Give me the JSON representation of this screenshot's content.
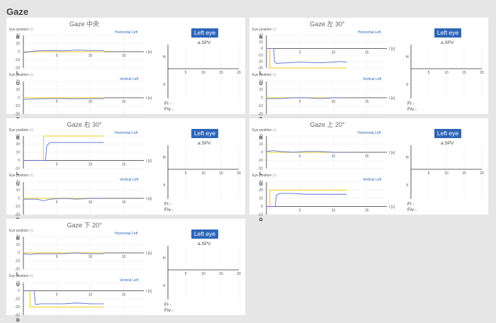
{
  "page_title": "Gaze",
  "labels": {
    "eye_position": "Eye position",
    "help_mark": "[?]",
    "horizontal": "Horizontal Left",
    "vertical": "Vertical Left",
    "eye_button": "Left eye",
    "spv": "a.SPV",
    "fi": "FI -",
    "fiv": "FIv -",
    "time_unit": "t [s]",
    "ch_h": "H",
    "ch_v": "V",
    "r": "R",
    "l": "L",
    "u": "U",
    "d": "D"
  },
  "panels": [
    {
      "title": "Gaze 中央"
    },
    {
      "title": "Gaze 左 30°"
    },
    {
      "title": "Gaze 右 30°"
    },
    {
      "title": "Gaze 上 20°"
    },
    {
      "title": "Gaze 下 20°"
    }
  ],
  "colors": {
    "stimulus": "#f5d442",
    "eye": "#5b6fd6",
    "button": "#2e66b8"
  },
  "chart_data": [
    {
      "type": "line",
      "name": "Gaze 中央 Horizontal Left",
      "x_range": [
        0,
        18
      ],
      "ylim": [
        -20,
        20
      ],
      "yticks": [
        20,
        10,
        0,
        -10,
        -20
      ],
      "xticks": [
        5,
        10,
        15
      ],
      "xlabel": "t [s]",
      "series": [
        {
          "name": "stimulus",
          "x": [
            0,
            12
          ],
          "y": [
            0,
            0
          ],
          "step": true
        },
        {
          "name": "eye",
          "x": [
            0,
            1,
            2,
            4,
            6,
            8,
            10,
            12
          ],
          "y": [
            -1,
            0,
            1,
            1.5,
            1,
            2,
            1.5,
            1.5
          ]
        }
      ]
    },
    {
      "type": "line",
      "name": "Gaze 中央 Vertical Left",
      "x_range": [
        0,
        18
      ],
      "ylim": [
        -20,
        20
      ],
      "yticks": [
        20,
        10,
        0,
        -10,
        -20
      ],
      "xticks": [
        5,
        10,
        15
      ],
      "xlabel": "t [s]",
      "series": [
        {
          "name": "stimulus",
          "x": [
            0,
            12
          ],
          "y": [
            0,
            0
          ],
          "step": true
        },
        {
          "name": "eye",
          "x": [
            0,
            2,
            4,
            6,
            8,
            10,
            12
          ],
          "y": [
            -2,
            -1.5,
            -1,
            -1,
            -1.5,
            -1,
            -1
          ]
        }
      ]
    },
    {
      "type": "line",
      "name": "Gaze 左 30° Horizontal Left",
      "x_range": [
        0,
        18
      ],
      "ylim": [
        -30,
        20
      ],
      "yticks": [
        20,
        10,
        0,
        -10,
        -20,
        -30
      ],
      "xticks": [
        5,
        10,
        15
      ],
      "xlabel": "t [s]",
      "series": [
        {
          "name": "stimulus",
          "x": [
            0,
            0.5,
            0.5,
            12
          ],
          "y": [
            0,
            0,
            -30,
            -30
          ]
        },
        {
          "name": "eye",
          "x": [
            0,
            1.1,
            1.2,
            1.5,
            3,
            5,
            8,
            10,
            11,
            12
          ],
          "y": [
            0,
            0,
            -20,
            -23,
            -22,
            -21,
            -22,
            -21,
            -20,
            -21
          ]
        }
      ]
    },
    {
      "type": "line",
      "name": "Gaze 左 30° Vertical Left",
      "x_range": [
        0,
        18
      ],
      "ylim": [
        -20,
        20
      ],
      "yticks": [
        20,
        10,
        0,
        -10,
        -20
      ],
      "xticks": [
        5,
        10,
        15
      ],
      "xlabel": "t [s]",
      "series": [
        {
          "name": "stimulus",
          "x": [
            0,
            12
          ],
          "y": [
            0,
            0
          ]
        },
        {
          "name": "eye",
          "x": [
            0,
            2,
            4,
            6,
            8,
            10,
            12
          ],
          "y": [
            -1,
            -1,
            0,
            0,
            -1,
            0,
            0
          ]
        }
      ]
    },
    {
      "type": "line",
      "name": "Gaze 右 30° Horizontal Left",
      "x_range": [
        0,
        18
      ],
      "ylim": [
        -10,
        30
      ],
      "yticks": [
        30,
        20,
        10,
        0,
        -10
      ],
      "xticks": [
        5,
        10,
        15
      ],
      "xlabel": "t [s]",
      "series": [
        {
          "name": "stimulus",
          "x": [
            0,
            3,
            3,
            12
          ],
          "y": [
            0,
            0,
            30,
            30
          ]
        },
        {
          "name": "eye",
          "x": [
            0,
            3.3,
            3.5,
            4,
            6,
            8,
            10,
            12
          ],
          "y": [
            0,
            0,
            18,
            22,
            22,
            22,
            22,
            22
          ]
        }
      ]
    },
    {
      "type": "line",
      "name": "Gaze 右 30° Vertical Left",
      "x_range": [
        0,
        18
      ],
      "ylim": [
        -20,
        20
      ],
      "yticks": [
        20,
        10,
        0,
        -10,
        -20
      ],
      "xticks": [
        5,
        10,
        15
      ],
      "xlabel": "t [s]",
      "series": [
        {
          "name": "stimulus",
          "x": [
            0,
            12
          ],
          "y": [
            0,
            0
          ]
        },
        {
          "name": "eye",
          "x": [
            0,
            2,
            3,
            4,
            6,
            8,
            10,
            12
          ],
          "y": [
            -1,
            -1,
            -3,
            -1,
            0,
            -1,
            0,
            0
          ]
        }
      ]
    },
    {
      "type": "line",
      "name": "Gaze 上 20° Horizontal Left",
      "x_range": [
        0,
        18
      ],
      "ylim": [
        -20,
        20
      ],
      "yticks": [
        20,
        10,
        0,
        -10,
        -20
      ],
      "xticks": [
        5,
        10,
        15
      ],
      "xlabel": "t [s]",
      "series": [
        {
          "name": "stimulus",
          "x": [
            0,
            12
          ],
          "y": [
            0,
            0
          ]
        },
        {
          "name": "eye",
          "x": [
            0,
            1,
            2,
            4,
            6,
            8,
            10,
            12
          ],
          "y": [
            1,
            2,
            1,
            0,
            1,
            1,
            0,
            0
          ]
        }
      ]
    },
    {
      "type": "line",
      "name": "Gaze 上 20° Vertical Left",
      "x_range": [
        0,
        18
      ],
      "ylim": [
        -10,
        30
      ],
      "yticks": [
        30,
        20,
        10,
        0,
        -10
      ],
      "xticks": [
        5,
        10,
        15
      ],
      "xlabel": "t [s]",
      "series": [
        {
          "name": "stimulus",
          "x": [
            0,
            0.5,
            0.5,
            12
          ],
          "y": [
            0,
            0,
            20,
            20
          ]
        },
        {
          "name": "eye",
          "x": [
            0,
            1.3,
            1.5,
            2,
            4,
            6,
            8,
            10,
            12
          ],
          "y": [
            0,
            0,
            14,
            16,
            16,
            15,
            15,
            15,
            15
          ]
        }
      ]
    },
    {
      "type": "line",
      "name": "Gaze 下 20° Horizontal Left",
      "x_range": [
        0,
        18
      ],
      "ylim": [
        -20,
        20
      ],
      "yticks": [
        20,
        10,
        0,
        -10,
        -20
      ],
      "xticks": [
        5,
        10,
        15
      ],
      "xlabel": "t [s]",
      "series": [
        {
          "name": "stimulus",
          "x": [
            0,
            12
          ],
          "y": [
            0,
            0
          ]
        },
        {
          "name": "eye",
          "x": [
            0,
            1,
            2,
            4,
            6,
            8,
            10,
            12
          ],
          "y": [
            -1,
            -2,
            -1,
            -1,
            -1,
            0,
            -1,
            -1
          ]
        }
      ]
    },
    {
      "type": "line",
      "name": "Gaze 下 20° Vertical Left",
      "x_range": [
        0,
        18
      ],
      "ylim": [
        -30,
        10
      ],
      "yticks": [
        10,
        0,
        -10,
        -20,
        -30
      ],
      "xticks": [
        5,
        10,
        15
      ],
      "xlabel": "t [s]",
      "series": [
        {
          "name": "stimulus",
          "x": [
            0,
            1,
            1,
            12
          ],
          "y": [
            0,
            0,
            -20,
            -20
          ]
        },
        {
          "name": "eye",
          "x": [
            0,
            1.6,
            1.8,
            2.5,
            4,
            6,
            8,
            10,
            12
          ],
          "y": [
            0,
            0,
            -17,
            -16,
            -16,
            -16,
            -15,
            -16,
            -16
          ]
        }
      ]
    },
    {
      "type": "line",
      "name": "a.SPV",
      "x_range": [
        0,
        20
      ],
      "xticks": [
        5,
        10,
        15,
        20
      ],
      "channels": [
        "H",
        "V"
      ],
      "series": []
    }
  ]
}
